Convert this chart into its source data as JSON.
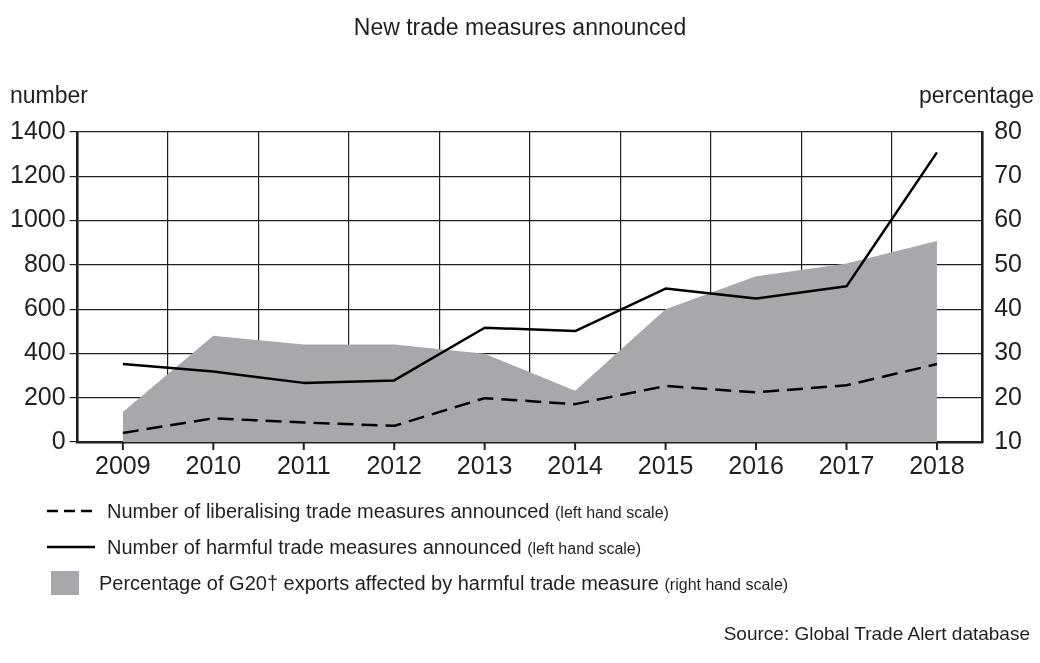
{
  "chart_data": {
    "type": "line",
    "title": "New trade measures announced",
    "ylabel": "number",
    "y2label": "percentage",
    "categories": [
      "2009",
      "2010",
      "2011",
      "2012",
      "2013",
      "2014",
      "2015",
      "2016",
      "2017",
      "2018"
    ],
    "series": [
      {
        "name": "Number of liberalising trade measures announced (left hand scale)",
        "color": "#000000",
        "line_style": "dashed",
        "values": [
          41,
          107,
          88,
          73,
          198,
          171,
          253,
          224,
          256,
          352
        ]
      },
      {
        "name": "Number of harmful trade measures announced (left hand scale)",
        "color": "#000000",
        "line_style": "solid",
        "values": [
          352,
          318,
          267,
          278,
          516,
          501,
          693,
          648,
          703,
          1308
        ]
      },
      {
        "name": "Percentage of G20† exports affected by harmful trade measure (right hand scale)",
        "type": "area",
        "axis": "y2",
        "color": "#a7a8ab",
        "values": [
          16.8,
          34.0,
          32.0,
          32.0,
          29.9,
          21.6,
          40.0,
          47.4,
          50.3,
          55.4
        ]
      }
    ],
    "ylim": [
      0,
      1400
    ],
    "yticks": [
      0,
      200,
      400,
      600,
      800,
      1000,
      1200,
      1400
    ],
    "y2lim": [
      10,
      80
    ],
    "y2ticks": [
      10,
      20,
      30,
      40,
      50,
      60,
      70,
      80
    ],
    "grid": true,
    "marker": "none",
    "legend": "bottom",
    "annotations": [
      "Source: Global Trade Alert database"
    ]
  }
}
